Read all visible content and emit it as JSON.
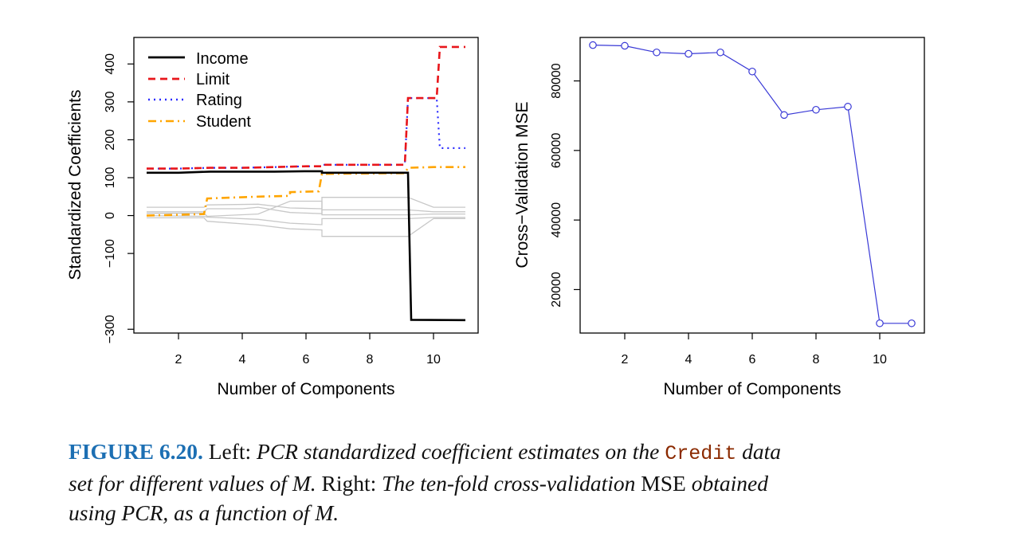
{
  "chart_data": [
    {
      "type": "line",
      "ylabel": "Standardized Coefficients",
      "xlabel": "Number of Components",
      "xlim": [
        0.6,
        11.4
      ],
      "ylim": [
        -310,
        470
      ],
      "xticks": [
        2,
        4,
        6,
        8,
        10
      ],
      "yticks": [
        -300,
        -100,
        0,
        100,
        200,
        300,
        400
      ],
      "legend": {
        "position": "top-left",
        "entries": [
          "Income",
          "Limit",
          "Rating",
          "Student"
        ]
      },
      "series": [
        {
          "name": "Income",
          "color": "#000000",
          "style": "solid",
          "points": [
            [
              1,
              113
            ],
            [
              2,
              113
            ],
            [
              3,
              116
            ],
            [
              4,
              116
            ],
            [
              5,
              116
            ],
            [
              6,
              117
            ],
            [
              6.5,
              117
            ],
            [
              6.5,
              113
            ],
            [
              9.2,
              113
            ],
            [
              9.3,
              -275
            ],
            [
              11,
              -276
            ]
          ]
        },
        {
          "name": "Limit",
          "color": "#e8161b",
          "style": "dashed",
          "points": [
            [
              1,
              124
            ],
            [
              2,
              124
            ],
            [
              3,
              126
            ],
            [
              4,
              126
            ],
            [
              5,
              128
            ],
            [
              6,
              130
            ],
            [
              6.5,
              130
            ],
            [
              6.5,
              134
            ],
            [
              9.1,
              134
            ],
            [
              9.2,
              310
            ],
            [
              10.1,
              310
            ],
            [
              10.2,
              445
            ],
            [
              11,
              445
            ]
          ]
        },
        {
          "name": "Rating",
          "color": "#2b2bff",
          "style": "dotted",
          "points": [
            [
              1,
              124
            ],
            [
              2,
              124
            ],
            [
              3,
              126
            ],
            [
              4,
              126
            ],
            [
              5,
              128
            ],
            [
              6,
              130
            ],
            [
              6.5,
              130
            ],
            [
              6.5,
              134
            ],
            [
              9.1,
              134
            ],
            [
              9.2,
              310
            ],
            [
              10.1,
              310
            ],
            [
              10.2,
              178
            ],
            [
              11,
              178
            ]
          ]
        },
        {
          "name": "Student",
          "color": "#ffa500",
          "style": "dashdot",
          "points": [
            [
              1,
              0
            ],
            [
              2,
              2
            ],
            [
              2.8,
              4
            ],
            [
              2.9,
              45
            ],
            [
              4.5,
              50
            ],
            [
              5.5,
              52
            ],
            [
              5.5,
              62
            ],
            [
              6.4,
              64
            ],
            [
              6.5,
              110
            ],
            [
              9.1,
              112
            ],
            [
              9.2,
              126
            ],
            [
              10,
              128
            ],
            [
              11,
              128
            ]
          ]
        },
        {
          "name": "other1",
          "color": "#c8c8c8",
          "style": "solid",
          "points": [
            [
              1,
              22
            ],
            [
              2.8,
              22
            ],
            [
              2.9,
              28
            ],
            [
              4.5,
              30
            ],
            [
              5.5,
              20
            ],
            [
              6.5,
              18
            ],
            [
              6.5,
              48
            ],
            [
              9.2,
              48
            ],
            [
              10,
              22
            ],
            [
              11,
              22
            ]
          ]
        },
        {
          "name": "other2",
          "color": "#c8c8c8",
          "style": "solid",
          "points": [
            [
              1,
              10
            ],
            [
              2.8,
              10
            ],
            [
              2.9,
              18
            ],
            [
              4,
              18
            ],
            [
              4.5,
              22
            ],
            [
              5.5,
              8
            ],
            [
              6.5,
              5
            ],
            [
              6.5,
              15
            ],
            [
              9.2,
              15
            ],
            [
              10,
              10
            ],
            [
              11,
              10
            ]
          ]
        },
        {
          "name": "other3",
          "color": "#c8c8c8",
          "style": "solid",
          "points": [
            [
              1,
              0
            ],
            [
              2.8,
              -2
            ],
            [
              2.9,
              -4
            ],
            [
              4.5,
              -10
            ],
            [
              5.5,
              -20
            ],
            [
              6.5,
              -24
            ],
            [
              6.5,
              -8
            ],
            [
              9.2,
              -8
            ],
            [
              10,
              -5
            ],
            [
              11,
              -5
            ]
          ]
        },
        {
          "name": "other4",
          "color": "#c8c8c8",
          "style": "solid",
          "points": [
            [
              1,
              -6
            ],
            [
              2.8,
              -6
            ],
            [
              2.9,
              -15
            ],
            [
              4.5,
              -25
            ],
            [
              5.5,
              -35
            ],
            [
              6.5,
              -38
            ],
            [
              6.5,
              -55
            ],
            [
              9.2,
              -55
            ],
            [
              10,
              -8
            ],
            [
              11,
              -8
            ]
          ]
        },
        {
          "name": "other5",
          "color": "#c8c8c8",
          "style": "solid",
          "points": [
            [
              1,
              6
            ],
            [
              2.8,
              6
            ],
            [
              2.9,
              -2
            ],
            [
              4.5,
              4
            ],
            [
              5.5,
              38
            ],
            [
              6.5,
              38
            ],
            [
              6.5,
              2
            ],
            [
              9.2,
              2
            ],
            [
              10,
              4
            ],
            [
              11,
              4
            ]
          ]
        }
      ]
    },
    {
      "type": "line",
      "ylabel": "Cross−Validation MSE",
      "xlabel": "Number of Components",
      "xlim": [
        0.6,
        11.4
      ],
      "ylim": [
        7500,
        92500
      ],
      "xticks": [
        2,
        4,
        6,
        8,
        10
      ],
      "yticks": [
        20000,
        40000,
        60000,
        80000
      ],
      "series": [
        {
          "name": "CV MSE",
          "color": "#3838d6",
          "x": [
            1,
            2,
            3,
            4,
            5,
            6,
            7,
            8,
            9,
            10,
            11
          ],
          "y": [
            90300,
            90100,
            88200,
            87800,
            88200,
            82700,
            70200,
            71700,
            72600,
            10300,
            10300
          ]
        }
      ]
    }
  ],
  "caption": {
    "figure_label": "FIGURE 6.20.",
    "left_word": "Left:",
    "left_text": "PCR standardized coefficient estimates on the",
    "code_word": "Credit",
    "data_word": "data",
    "line2_italic": "set for different values of",
    "m1": "M",
    "period1": ".",
    "right_word": "Right:",
    "right_text": "The ten-fold cross-validation",
    "mse_word": "MSE",
    "obtained_word": "obtained",
    "line3_italic": "using PCR, as a function of",
    "m2": "M",
    "period2": "."
  }
}
